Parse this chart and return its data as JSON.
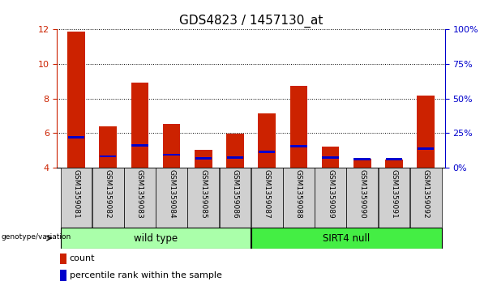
{
  "title": "GDS4823 / 1457130_at",
  "samples": [
    "GSM1359081",
    "GSM1359082",
    "GSM1359083",
    "GSM1359084",
    "GSM1359085",
    "GSM1359086",
    "GSM1359087",
    "GSM1359088",
    "GSM1359089",
    "GSM1359090",
    "GSM1359091",
    "GSM1359092"
  ],
  "count_values": [
    11.85,
    6.4,
    8.9,
    6.55,
    5.05,
    5.95,
    7.15,
    8.75,
    5.2,
    4.5,
    4.45,
    8.15
  ],
  "percentile_values": [
    5.75,
    4.65,
    5.3,
    4.75,
    4.55,
    4.6,
    4.9,
    5.25,
    4.6,
    4.5,
    4.5,
    5.1
  ],
  "y_min": 4,
  "y_max": 12,
  "y_ticks_left": [
    4,
    6,
    8,
    10,
    12
  ],
  "y2_ticks": [
    0,
    25,
    50,
    75,
    100
  ],
  "y2_labels": [
    "0%",
    "25%",
    "50%",
    "75%",
    "100%"
  ],
  "bar_color": "#cc2200",
  "percentile_color": "#0000cc",
  "group1_label": "wild type",
  "group2_label": "SIRT4 null",
  "group1_indices": [
    0,
    1,
    2,
    3,
    4,
    5
  ],
  "group2_indices": [
    6,
    7,
    8,
    9,
    10,
    11
  ],
  "group1_color": "#aaffaa",
  "group2_color": "#44ee44",
  "left_axis_color": "#cc2200",
  "right_axis_color": "#0000cc",
  "title_fontsize": 11,
  "tick_fontsize": 8,
  "bar_width": 0.55,
  "legend_count_label": "count",
  "legend_percentile_label": "percentile rank within the sample",
  "genotype_label": "genotype/variation",
  "cell_bg": "#d0d0d0",
  "blue_bar_height": 0.13
}
